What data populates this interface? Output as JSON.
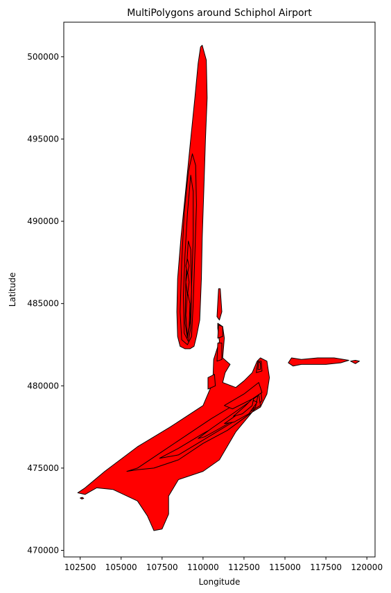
{
  "chart_data": {
    "type": "area",
    "title": "MultiPolygons around Schiphol Airport",
    "xlabel": "Longitude",
    "ylabel": "Latitude",
    "xlim": [
      101500,
      120500
    ],
    "ylim": [
      469600,
      502100
    ],
    "grid": false,
    "legend": "none",
    "x_ticks": [
      102500,
      105000,
      107500,
      110000,
      112500,
      115000,
      117500,
      120000
    ],
    "y_ticks": [
      470000,
      475000,
      480000,
      485000,
      490000,
      495000,
      500000
    ],
    "fill_color": "#ff0000",
    "edge_color": "#000000",
    "polygons": [
      {
        "id": "north-plume",
        "rings": [
          [
            [
              109950,
              500700
            ],
            [
              110200,
              499800
            ],
            [
              110250,
              497500
            ],
            [
              110150,
              495000
            ],
            [
              110050,
              492000
            ],
            [
              109950,
              489000
            ],
            [
              109900,
              486500
            ],
            [
              109800,
              484000
            ],
            [
              109600,
              483000
            ],
            [
              109450,
              482400
            ],
            [
              109200,
              482250
            ],
            [
              108900,
              482250
            ],
            [
              108600,
              482400
            ],
            [
              108450,
              483000
            ],
            [
              108400,
              484500
            ],
            [
              108450,
              486500
            ],
            [
              108650,
              489000
            ],
            [
              108950,
              492000
            ],
            [
              109250,
              495000
            ],
            [
              109500,
              497500
            ],
            [
              109700,
              499600
            ],
            [
              109850,
              500600
            ]
          ],
          [
            [
              109050,
              482500
            ],
            [
              108700,
              482800
            ],
            [
              108600,
              484500
            ],
            [
              108700,
              487500
            ],
            [
              108850,
              490500
            ],
            [
              109100,
              493000
            ],
            [
              109350,
              494100
            ],
            [
              109550,
              493400
            ],
            [
              109600,
              491000
            ],
            [
              109500,
              488000
            ],
            [
              109400,
              485000
            ],
            [
              109300,
              483000
            ]
          ],
          [
            [
              109100,
              482700
            ],
            [
              108850,
              483200
            ],
            [
              108800,
              485500
            ],
            [
              108900,
              488000
            ],
            [
              109050,
              490500
            ],
            [
              109250,
              492800
            ],
            [
              109400,
              491800
            ],
            [
              109400,
              489000
            ],
            [
              109300,
              486000
            ],
            [
              109250,
              483500
            ]
          ],
          [
            [
              109050,
              482900
            ],
            [
              108900,
              483800
            ],
            [
              108950,
              486500
            ],
            [
              109100,
              488800
            ],
            [
              109250,
              488300
            ],
            [
              109300,
              485800
            ],
            [
              109200,
              483800
            ]
          ],
          [
            [
              109050,
              483000
            ],
            [
              108950,
              484300
            ],
            [
              109050,
              485700
            ],
            [
              109200,
              485000
            ],
            [
              109150,
              483600
            ]
          ],
          [
            [
              109050,
              485500
            ],
            [
              108950,
              486300
            ],
            [
              109050,
              487000
            ],
            [
              109150,
              486300
            ]
          ],
          [
            [
              109050,
              486800
            ],
            [
              108950,
              487300
            ],
            [
              109050,
              487700
            ],
            [
              109150,
              487300
            ]
          ]
        ]
      },
      {
        "id": "main-plume",
        "rings": [
          [
            [
              102350,
              473500
            ],
            [
              102800,
              473800
            ],
            [
              104000,
              474800
            ],
            [
              106000,
              476300
            ],
            [
              108000,
              477500
            ],
            [
              110000,
              478800
            ],
            [
              110600,
              480200
            ],
            [
              110650,
              481600
            ],
            [
              111000,
              482700
            ],
            [
              110900,
              483500
            ],
            [
              110900,
              483800
            ],
            [
              111200,
              483600
            ],
            [
              111300,
              482900
            ],
            [
              111200,
              481700
            ],
            [
              111650,
              481300
            ],
            [
              111350,
              480800
            ],
            [
              111200,
              480200
            ],
            [
              112000,
              479900
            ],
            [
              112500,
              480300
            ],
            [
              113000,
              480800
            ],
            [
              113300,
              481500
            ],
            [
              113500,
              481700
            ],
            [
              113900,
              481500
            ],
            [
              114050,
              480500
            ],
            [
              113900,
              479500
            ],
            [
              113500,
              478700
            ],
            [
              113000,
              478400
            ],
            [
              112000,
              477200
            ],
            [
              111000,
              475500
            ],
            [
              110000,
              474800
            ],
            [
              108500,
              474300
            ],
            [
              107900,
              473300
            ],
            [
              107900,
              472200
            ],
            [
              107500,
              471300
            ],
            [
              107000,
              471200
            ],
            [
              106600,
              472100
            ],
            [
              106000,
              473000
            ],
            [
              104500,
              473700
            ],
            [
              103500,
              473800
            ],
            [
              102800,
              473400
            ]
          ],
          [
            [
              105350,
              474800
            ],
            [
              106000,
              475000
            ],
            [
              107500,
              476000
            ],
            [
              109000,
              477000
            ],
            [
              110500,
              478000
            ],
            [
              111500,
              478600
            ],
            [
              112500,
              479200
            ],
            [
              113500,
              479900
            ],
            [
              113600,
              479100
            ],
            [
              113000,
              478400
            ],
            [
              111500,
              477300
            ],
            [
              110000,
              476500
            ],
            [
              108500,
              475500
            ],
            [
              107000,
              475000
            ],
            [
              106000,
              474900
            ]
          ],
          [
            [
              107350,
              475600
            ],
            [
              108500,
              476200
            ],
            [
              110000,
              477100
            ],
            [
              111500,
              477900
            ],
            [
              112500,
              478700
            ],
            [
              113400,
              479500
            ],
            [
              113500,
              478800
            ],
            [
              112500,
              478200
            ],
            [
              111000,
              477300
            ],
            [
              109500,
              476400
            ],
            [
              108500,
              475800
            ]
          ],
          [
            [
              109700,
              476800
            ],
            [
              110500,
              477400
            ],
            [
              111800,
              478300
            ],
            [
              112800,
              479000
            ],
            [
              113350,
              479400
            ],
            [
              113200,
              478700
            ],
            [
              112200,
              478100
            ],
            [
              111000,
              477400
            ],
            [
              110100,
              476900
            ]
          ],
          [
            [
              111300,
              477700
            ],
            [
              112300,
              478400
            ],
            [
              113100,
              479100
            ],
            [
              113300,
              479000
            ],
            [
              112800,
              478300
            ],
            [
              111900,
              477800
            ]
          ],
          [
            [
              111850,
              478150
            ],
            [
              112600,
              478800
            ],
            [
              113100,
              479300
            ],
            [
              113000,
              478800
            ],
            [
              112400,
              478300
            ]
          ],
          [
            [
              111300,
              478800
            ],
            [
              112500,
              479500
            ],
            [
              113400,
              480200
            ],
            [
              113600,
              479600
            ],
            [
              113000,
              479200
            ],
            [
              111800,
              478600
            ]
          ],
          [
            [
              113250,
              480800
            ],
            [
              113350,
              481500
            ],
            [
              113550,
              481500
            ],
            [
              113600,
              480900
            ]
          ],
          [
            [
              113350,
              481000
            ],
            [
              113400,
              481450
            ],
            [
              113500,
              481400
            ],
            [
              113500,
              481000
            ]
          ],
          [
            [
              110300,
              479800
            ],
            [
              110300,
              480500
            ],
            [
              110700,
              480700
            ],
            [
              110750,
              480000
            ]
          ],
          [
            [
              110850,
              481500
            ],
            [
              110900,
              482600
            ],
            [
              111150,
              482600
            ],
            [
              111150,
              481600
            ]
          ],
          [
            [
              110900,
              482900
            ],
            [
              110950,
              483700
            ],
            [
              111200,
              483600
            ],
            [
              111200,
              483000
            ]
          ],
          [
            [
              110850,
              484200
            ],
            [
              110950,
              485900
            ],
            [
              111050,
              485900
            ],
            [
              111150,
              484500
            ],
            [
              111000,
              484000
            ]
          ]
        ]
      },
      {
        "id": "east-plume",
        "rings": [
          [
            [
              115200,
              481400
            ],
            [
              115400,
              481700
            ],
            [
              116000,
              481600
            ],
            [
              117000,
              481700
            ],
            [
              118000,
              481700
            ],
            [
              118900,
              481550
            ],
            [
              118400,
              481400
            ],
            [
              117500,
              481300
            ],
            [
              116500,
              481300
            ],
            [
              116000,
              481300
            ],
            [
              115500,
              481200
            ]
          ],
          [
            [
              119000,
              481500
            ],
            [
              119300,
              481550
            ],
            [
              119550,
              481500
            ],
            [
              119300,
              481350
            ]
          ]
        ]
      },
      {
        "id": "speck",
        "rings": [
          [
            [
              102500,
              473180
            ],
            [
              102620,
              473220
            ],
            [
              102720,
              473160
            ],
            [
              102600,
              473120
            ]
          ]
        ]
      }
    ]
  }
}
